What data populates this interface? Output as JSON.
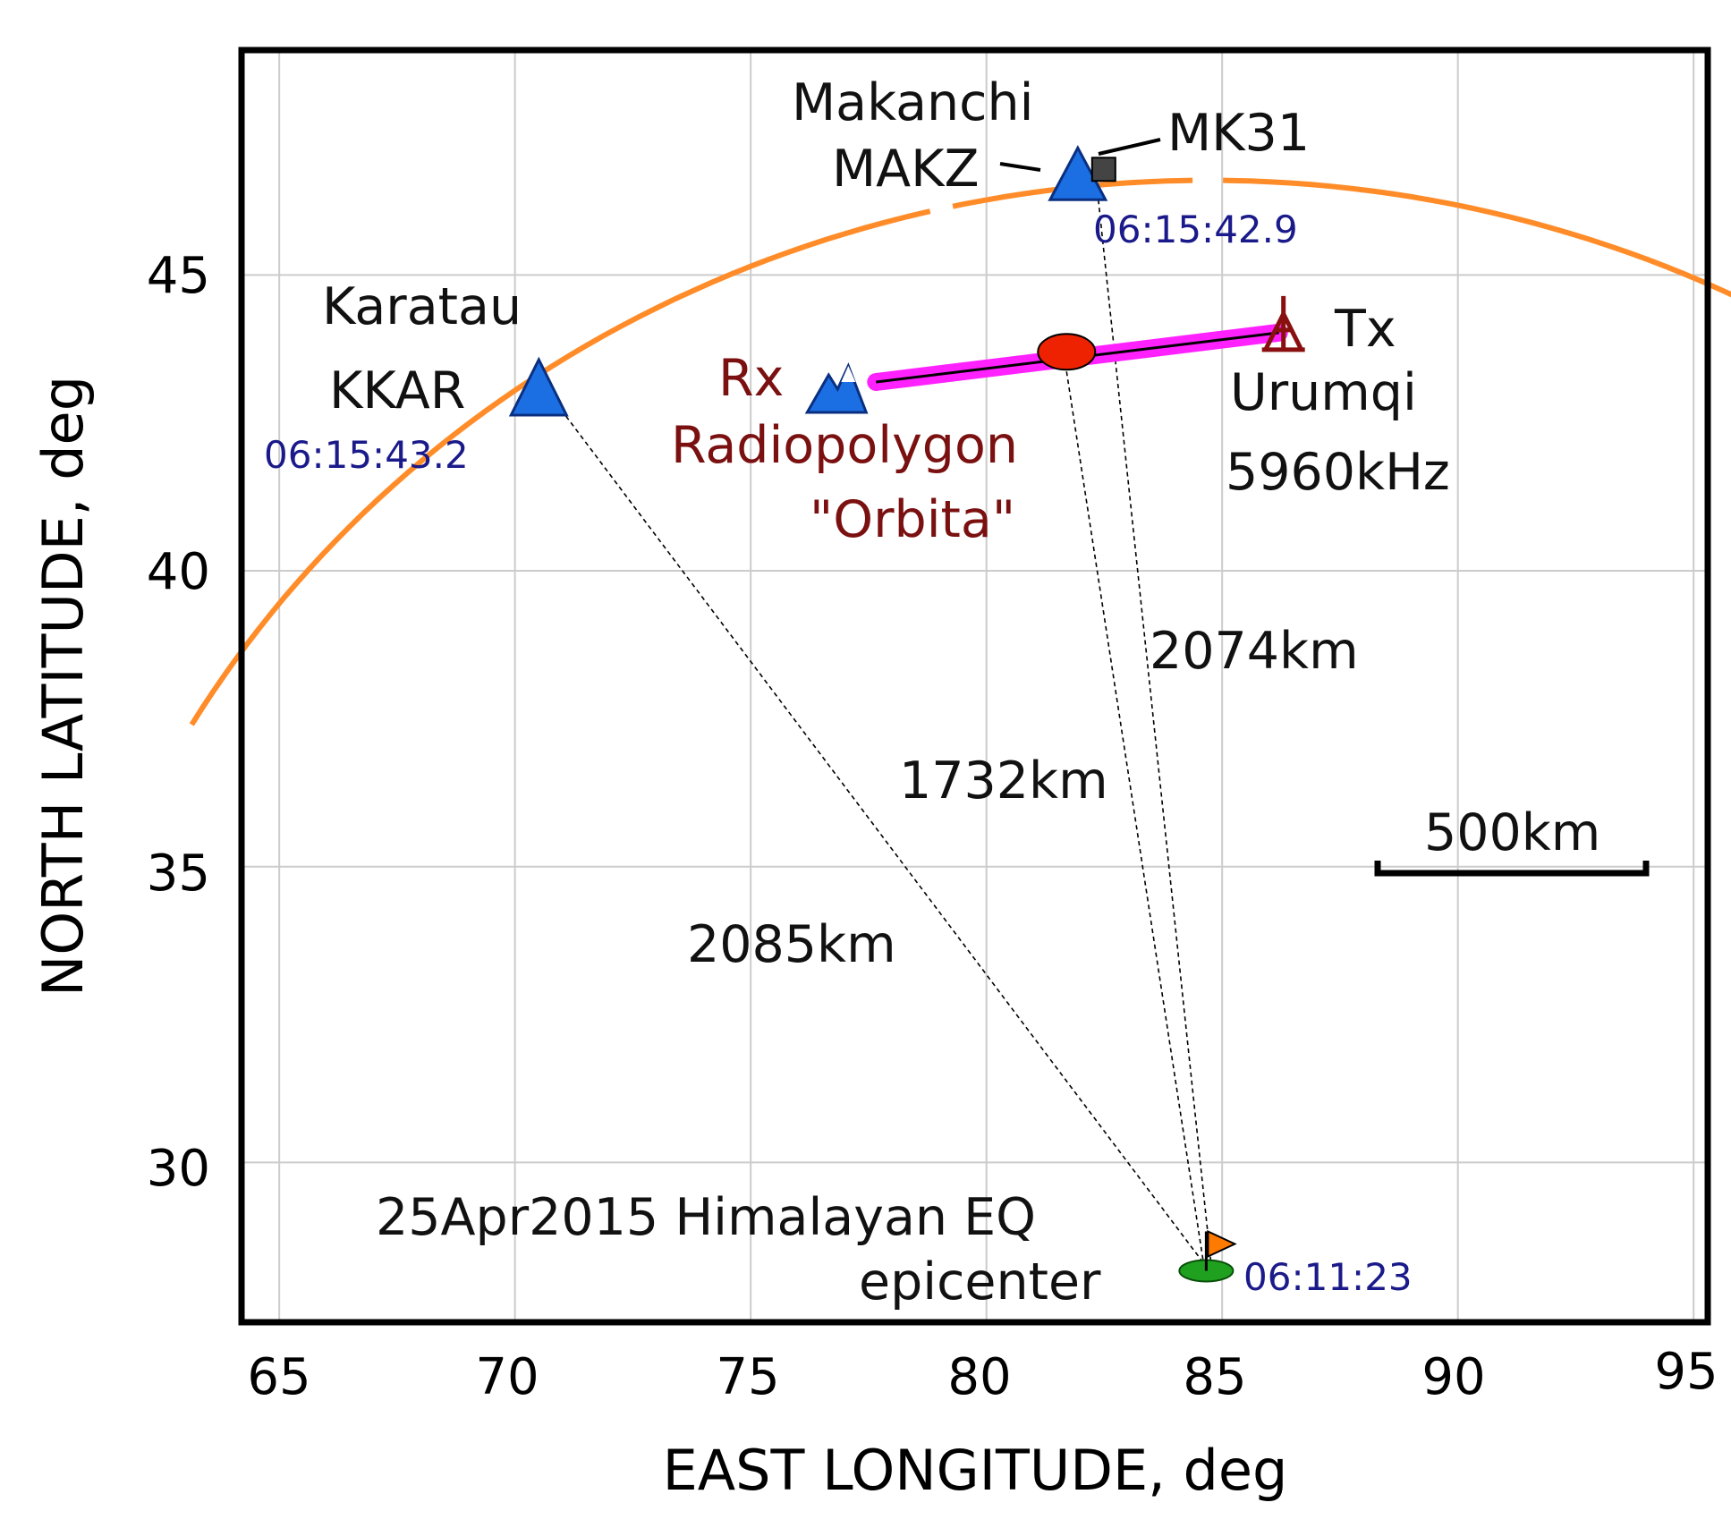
{
  "chart_data": {
    "type": "map",
    "xlabel": "EAST LONGITUDE, deg",
    "ylabel": "NORTH LATITUDE, deg",
    "xlim": [
      64.2,
      95.3
    ],
    "ylim": [
      27.3,
      48.8
    ],
    "xticks": [
      "65",
      "70",
      "75",
      "80",
      "85",
      "90",
      "95"
    ],
    "yticks": [
      "30",
      "35",
      "40",
      "45"
    ],
    "arc_colour": "#ff8c28",
    "path_colour": "#ff22ff",
    "stations": {
      "kkar": {
        "name": "Karatau",
        "code": "KKAR",
        "time": "06:15:43.2",
        "lon": 70.6,
        "lat": 43.1
      },
      "makz": {
        "name": "Makanchi",
        "code": "MAKZ",
        "code2": "MK31",
        "time": "06:15:42.9",
        "lon": 81.9,
        "lat": 46.8
      },
      "rx": {
        "label": "Rx",
        "name": "Radiopolygon",
        "name2": "\"Orbita\"",
        "lon": 76.9,
        "lat": 43.1
      },
      "tx": {
        "label": "Tx",
        "city": "Urumqi",
        "freq": "5960kHz",
        "lon": 86.3,
        "lat": 44.1
      },
      "reflection": {
        "lon": 81.7,
        "lat": 43.7
      },
      "epicenter": {
        "title": "25Apr2015 Himalayan EQ",
        "subtitle": "epicenter",
        "time": "06:11:23",
        "lon": 84.7,
        "lat": 28.2
      }
    },
    "distances": [
      {
        "label": "2085km",
        "lon": 75.2,
        "lat": 33.8
      },
      {
        "label": "1732km",
        "lon": 80.4,
        "lat": 36.7
      },
      {
        "label": "2074km",
        "lon": 85.2,
        "lat": 38.9
      }
    ],
    "scale_bar": {
      "label": "500km"
    }
  }
}
